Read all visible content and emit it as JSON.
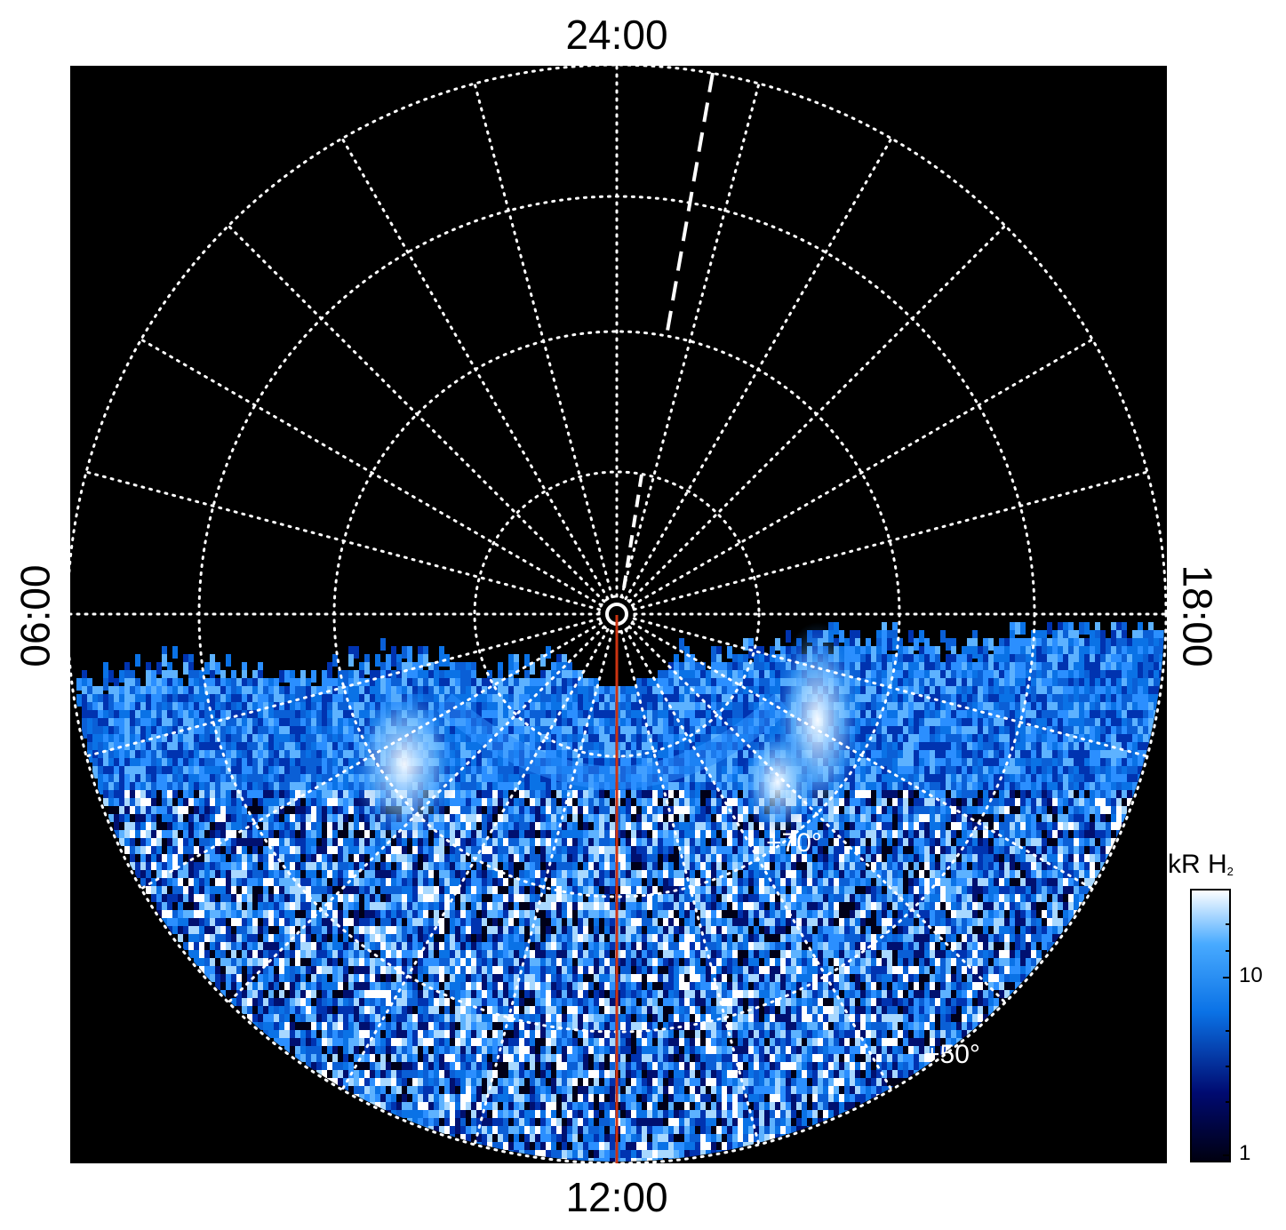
{
  "labels": {
    "top": "24:00",
    "bottom": "12:00",
    "left": "06:00",
    "right": "18:00"
  },
  "latitude_labels": [
    "+70°",
    "+50°"
  ],
  "colorbar": {
    "title": "kR H",
    "subscript": "2",
    "ticks": [
      "10",
      "1"
    ],
    "colors": {
      "low": "#000010",
      "mid": "#0a72e6",
      "high": "#ffffff"
    }
  },
  "colors": {
    "background": "#000000",
    "grid": "#ffffff",
    "meridian_line": "#cc3311"
  }
}
